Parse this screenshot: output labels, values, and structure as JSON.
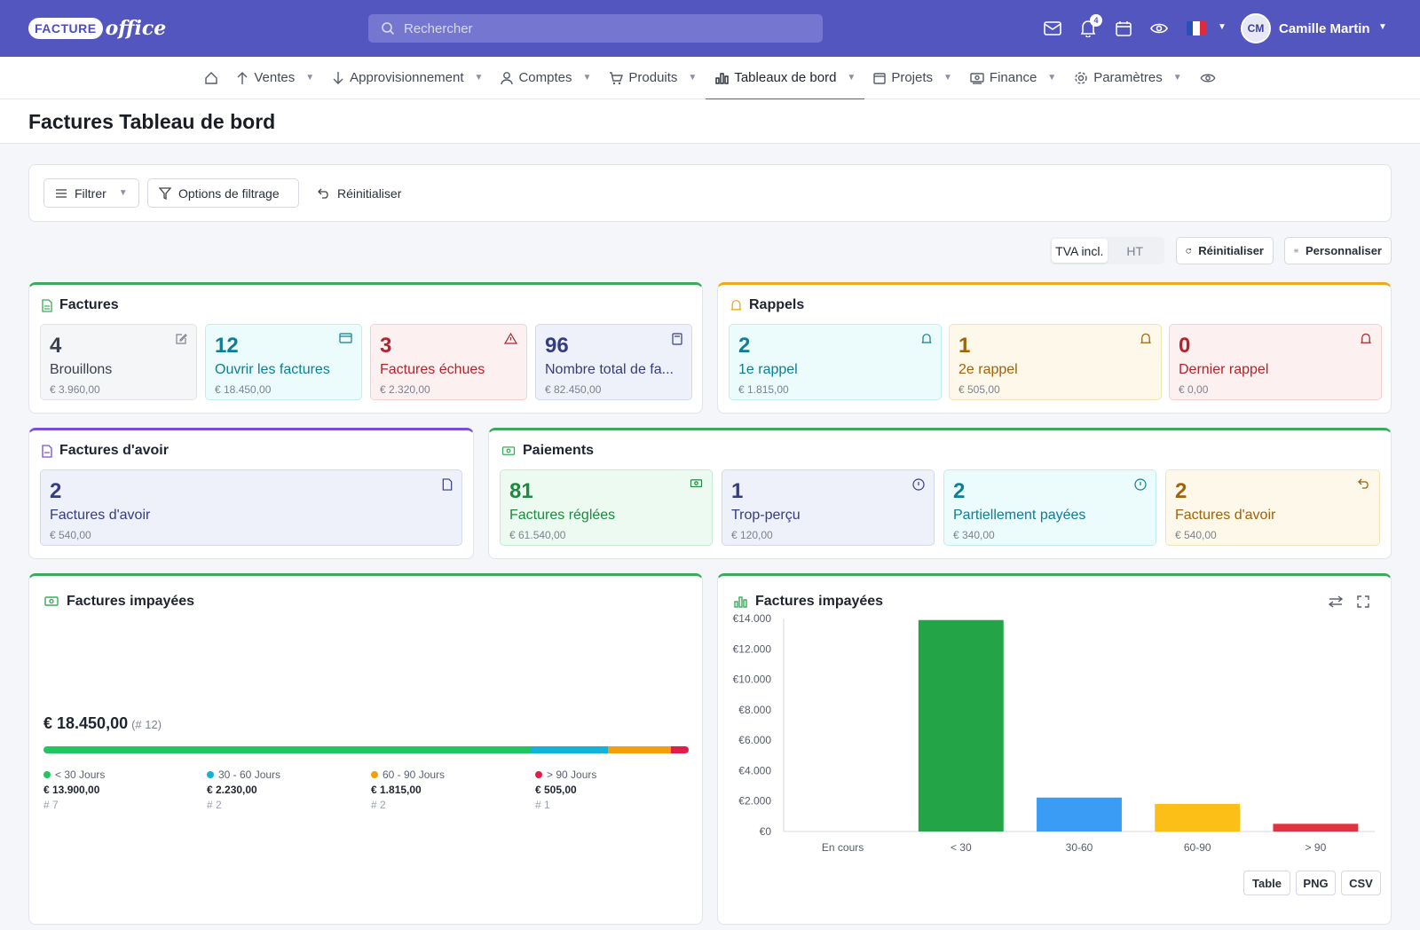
{
  "header": {
    "logo_badge": "FACTURE",
    "logo_word": "office",
    "search_placeholder": "Rechercher",
    "notifications_count": "4",
    "user_initials": "CM",
    "user_name": "Camille Martin"
  },
  "nav": {
    "items": [
      {
        "label": "Ventes",
        "icon": "arrow-up-icon"
      },
      {
        "label": "Approvisionnement",
        "icon": "arrow-down-icon"
      },
      {
        "label": "Comptes",
        "icon": "user-icon"
      },
      {
        "label": "Produits",
        "icon": "cart-icon"
      },
      {
        "label": "Tableaux de bord",
        "icon": "bar-chart-icon",
        "active": true
      },
      {
        "label": "Projets",
        "icon": "calendar-icon"
      },
      {
        "label": "Finance",
        "icon": "money-icon"
      },
      {
        "label": "Paramètres",
        "icon": "gear-icon"
      }
    ]
  },
  "page": {
    "title": "Factures Tableau de bord"
  },
  "filters": {
    "filter_label": "Filtrer",
    "options_label": "Options de filtrage",
    "reset_label": "Réinitialiser"
  },
  "toolbar": {
    "vat_incl": "TVA incl.",
    "vat_excl": "HT",
    "reset_label": "Réinitialiser",
    "customize_label": "Personnaliser"
  },
  "invoices": {
    "title": "Factures",
    "accent": "#3aab5b",
    "cards": [
      {
        "num": "4",
        "label": "Brouillons",
        "amount": "€ 3.960,00"
      },
      {
        "num": "12",
        "label": "Ouvrir les factures",
        "amount": "€ 18.450,00"
      },
      {
        "num": "3",
        "label": "Factures échues",
        "amount": "€ 2.320,00"
      },
      {
        "num": "96",
        "label": "Nombre total de fa...",
        "amount": "€ 82.450,00"
      }
    ]
  },
  "reminders": {
    "title": "Rappels",
    "accent": "#f0a91b",
    "cards": [
      {
        "num": "2",
        "label": "1e rappel",
        "amount": "€ 1.815,00"
      },
      {
        "num": "1",
        "label": "2e rappel",
        "amount": "€ 505,00"
      },
      {
        "num": "0",
        "label": "Dernier rappel",
        "amount": "€ 0,00"
      }
    ]
  },
  "credit_notes": {
    "title": "Factures d'avoir",
    "accent": "#7b4fd3",
    "cards": [
      {
        "num": "2",
        "label": "Factures d'avoir",
        "amount": "€ 540,00"
      }
    ]
  },
  "payments": {
    "title": "Paiements",
    "accent": "#3aab5b",
    "cards": [
      {
        "num": "81",
        "label": "Factures réglées",
        "amount": "€ 61.540,00"
      },
      {
        "num": "1",
        "label": "Trop-perçu",
        "amount": "€ 120,00"
      },
      {
        "num": "2",
        "label": "Partiellement payées",
        "amount": "€ 340,00"
      },
      {
        "num": "2",
        "label": "Factures d'avoir",
        "amount": "€ 540,00"
      }
    ]
  },
  "unpaid_summary": {
    "title": "Factures impayées",
    "total": "€ 18.450,00",
    "count": "(# 12)",
    "segments": [
      {
        "label": "< 30 Jours",
        "value": "€ 13.900,00",
        "count": "# 7",
        "amount": 13900,
        "color": "#22c55e"
      },
      {
        "label": "30 - 60 Jours",
        "value": "€ 2.230,00",
        "count": "# 2",
        "amount": 2230,
        "color": "#14b1d9"
      },
      {
        "label": "60 - 90 Jours",
        "value": "€ 1.815,00",
        "count": "# 2",
        "amount": 1815,
        "color": "#f59e0b"
      },
      {
        "label": "> 90 Jours",
        "value": "€ 505,00",
        "count": "# 1",
        "amount": 505,
        "color": "#e11d48"
      }
    ]
  },
  "unpaid_chart": {
    "title": "Factures impayées",
    "buttons": {
      "table": "Table",
      "png": "PNG",
      "csv": "CSV"
    }
  },
  "chart_data": {
    "type": "bar",
    "title": "Factures impayées",
    "categories": [
      "En cours",
      "< 30",
      "30-60",
      "60-90",
      "> 90"
    ],
    "values": [
      0,
      13900,
      2230,
      1815,
      505
    ],
    "colors": [
      "#22a447",
      "#22a447",
      "#3b9cf5",
      "#fbbf17",
      "#e0333f"
    ],
    "ylim": [
      0,
      14000
    ],
    "yticks": [
      "€0",
      "€2.000",
      "€4.000",
      "€6.000",
      "€8.000",
      "€10.000",
      "€12.000",
      "€14.000"
    ],
    "grid": false
  }
}
